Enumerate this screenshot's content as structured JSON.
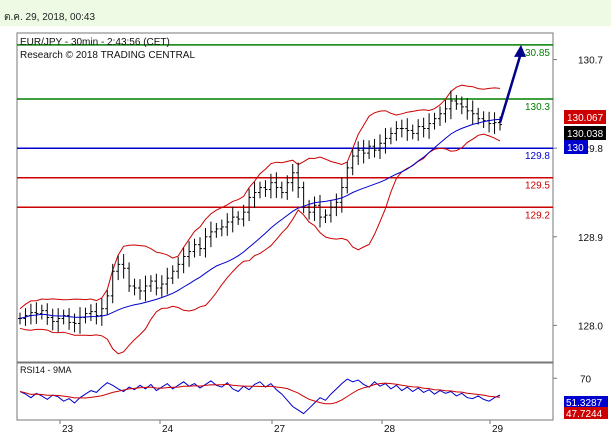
{
  "timestamp": "ต.ค. 29, 2018, 00:43",
  "chart_data": [
    {
      "type": "candlestick",
      "title": "EUR/JPY - 30min - 2:43:56 (CET)",
      "subtitle": "Research © 2018 TRADING CENTRAL",
      "ylim": [
        127.75,
        130.95
      ],
      "y_ticks": [
        "130.7",
        "129.8",
        "128.9",
        "128.0"
      ],
      "x_ticks": [
        "23",
        "24",
        "27",
        "28",
        "29"
      ],
      "levels": [
        {
          "label": "130.85",
          "value": 130.85,
          "color": "#008000"
        },
        {
          "label": "130.3",
          "value": 130.3,
          "color": "#008000"
        },
        {
          "label": "129.8",
          "value": 129.8,
          "color": "#0000cc"
        },
        {
          "label": "129.5",
          "value": 129.5,
          "color": "#cc0000"
        },
        {
          "label": "129.2",
          "value": 129.2,
          "color": "#cc0000"
        }
      ],
      "price_badges": [
        {
          "label": "130.067",
          "value": 130.067,
          "color": "#cc0000"
        },
        {
          "label": "130.038",
          "value": 130.038,
          "color": "#000000"
        },
        {
          "label": "130",
          "value": 129.8,
          "color": "#0000cc"
        }
      ],
      "target_arrow": {
        "from": 130.06,
        "to": 130.85
      },
      "close_series": [
        128.07,
        128.1,
        128.13,
        128.12,
        128.15,
        128.08,
        128.04,
        128.07,
        128.1,
        128.03,
        128.02,
        128.08,
        128.12,
        128.14,
        128.1,
        128.17,
        128.3,
        128.55,
        128.62,
        128.58,
        128.4,
        128.38,
        128.35,
        128.4,
        128.45,
        128.38,
        128.42,
        128.48,
        128.55,
        128.62,
        128.7,
        128.75,
        128.82,
        128.78,
        128.9,
        128.95,
        128.98,
        129.0,
        129.05,
        129.1,
        129.08,
        129.15,
        129.3,
        129.35,
        129.4,
        129.38,
        129.45,
        129.4,
        129.35,
        129.45,
        129.55,
        129.4,
        129.2,
        129.15,
        129.22,
        129.1,
        129.12,
        129.2,
        129.25,
        129.4,
        129.6,
        129.72,
        129.78,
        129.75,
        129.82,
        129.78,
        129.85,
        129.9,
        129.95,
        130.0,
        130.0,
        129.98,
        129.95,
        130.02,
        130.0,
        130.05,
        130.1,
        130.15,
        130.2,
        130.28,
        130.25,
        130.22,
        130.18,
        130.15,
        130.1,
        130.08,
        130.05,
        130.06,
        130.04
      ],
      "rsi": {
        "title": "RSI14 - 9MA",
        "ticks": [
          "70"
        ],
        "badges": [
          {
            "label": "51.3287",
            "value": 51.3287,
            "color": "#0000cc"
          },
          {
            "label": "47.7244",
            "value": 47.7244,
            "color": "#cc0000"
          }
        ],
        "series": [
          55,
          52,
          48,
          53,
          50,
          46,
          51,
          49,
          44,
          47,
          42,
          48,
          52,
          56,
          54,
          60,
          65,
          62,
          58,
          55,
          60,
          57,
          62,
          58,
          63,
          56,
          60,
          64,
          58,
          62,
          66,
          61,
          64,
          59,
          63,
          67,
          62,
          60,
          65,
          58,
          55,
          61,
          57,
          63,
          66,
          60,
          64,
          57,
          52,
          45,
          38,
          34,
          30,
          36,
          42,
          48,
          45,
          52,
          58,
          64,
          69,
          66,
          68,
          63,
          60,
          66,
          61,
          64,
          58,
          62,
          56,
          60,
          55,
          59,
          54,
          57,
          52,
          56,
          53,
          55,
          50,
          53,
          48,
          47,
          50,
          46,
          44,
          48,
          51
        ]
      }
    }
  ]
}
